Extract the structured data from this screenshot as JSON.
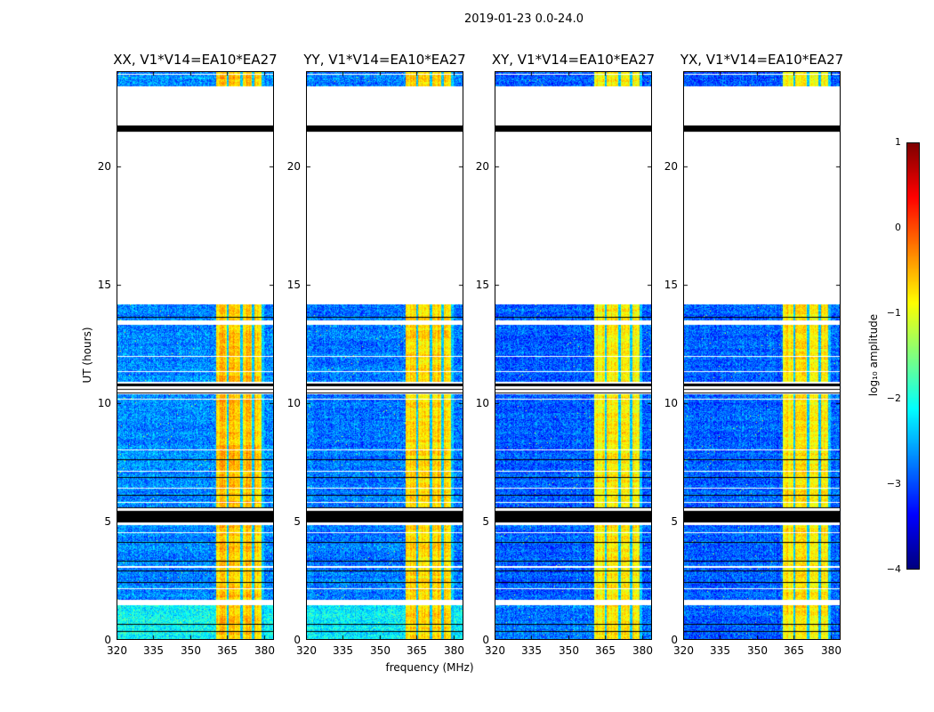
{
  "chart_data": {
    "type": "heatmap",
    "title": "2019-01-23 0.0-24.0",
    "xlabel": "frequency (MHz)",
    "ylabel": "UT (hours)",
    "xlim": [
      320,
      384
    ],
    "ylim": [
      0,
      24
    ],
    "xticks": [
      320,
      335,
      350,
      365,
      380
    ],
    "yticks": [
      0,
      5,
      10,
      15,
      20
    ],
    "panels": [
      {
        "title": "XX, V1*V14=EA10*EA27",
        "base": -2.7,
        "low_base": -2.1,
        "band": -0.6
      },
      {
        "title": "YY, V1*V14=EA10*EA27",
        "base": -2.8,
        "low_base": -2.2,
        "band": -0.7
      },
      {
        "title": "XY, V1*V14=EA10*EA27",
        "base": -2.9,
        "low_base": -2.8,
        "band": -0.8
      },
      {
        "title": "YX, V1*V14=EA10*EA27",
        "base": -2.9,
        "low_base": -2.9,
        "band": -0.8
      }
    ],
    "data_hours": [
      [
        0,
        1.45
      ],
      [
        1.7,
        4.85
      ],
      [
        5.6,
        10.35
      ],
      [
        10.9,
        13.3
      ],
      [
        13.5,
        14.15
      ],
      [
        23.35,
        24
      ]
    ],
    "flagged_hours": [
      [
        0.35,
        0.38
      ],
      [
        0.65,
        0.68
      ],
      [
        1.75,
        1.78
      ],
      [
        2.4,
        2.43
      ],
      [
        2.9,
        2.93
      ],
      [
        3.3,
        3.33
      ],
      [
        3.85,
        3.88
      ],
      [
        4.1,
        4.13
      ],
      [
        4.95,
        5.45
      ],
      [
        5.55,
        5.6
      ],
      [
        6.1,
        6.13
      ],
      [
        6.85,
        6.88
      ],
      [
        7.6,
        7.63
      ],
      [
        10.4,
        10.45
      ],
      [
        10.55,
        10.6
      ],
      [
        10.7,
        10.8
      ],
      [
        13.6,
        13.63
      ],
      [
        21.45,
        21.48
      ],
      [
        21.5,
        21.7
      ]
    ],
    "gap_hours": [
      [
        2.15,
        2.18
      ],
      [
        3.05,
        3.12
      ],
      [
        4.5,
        4.53
      ],
      [
        5.8,
        5.83
      ],
      [
        6.4,
        6.43
      ],
      [
        7.1,
        7.13
      ],
      [
        7.35,
        7.38
      ],
      [
        8.0,
        8.03
      ],
      [
        9.6,
        9.63
      ],
      [
        10.15,
        10.18
      ],
      [
        11.3,
        11.33
      ],
      [
        11.7,
        11.73
      ],
      [
        11.95,
        12.0
      ],
      [
        23.85,
        23.88
      ]
    ],
    "bright_band_mhz": [
      360.5,
      380.2
    ],
    "band_dark_channels_mhz": [
      365.2,
      370.8,
      375.5,
      379.5
    ],
    "colorbar": {
      "label": "log₁₀ amplitude",
      "range": [
        -4,
        1
      ],
      "ticks": [
        -4,
        -3,
        -2,
        -1,
        0,
        1
      ],
      "colormap": "jet"
    }
  }
}
